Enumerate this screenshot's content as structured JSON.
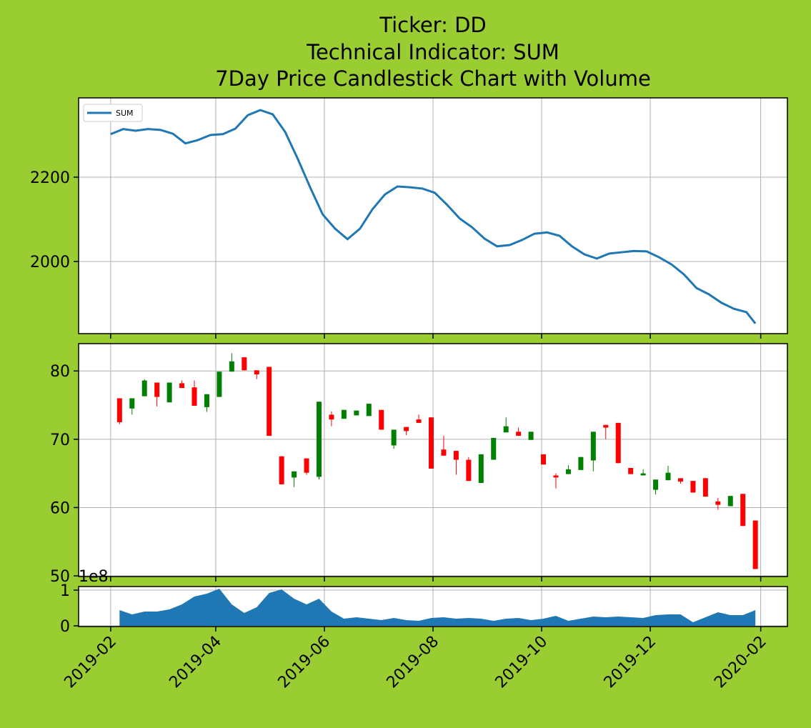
{
  "title": [
    "Ticker: DD",
    "Technical Indicator: SUM",
    "7Day Price Candlestick Chart with Volume"
  ],
  "chart_data": [
    {
      "type": "line",
      "legend": "upper left",
      "grid": true,
      "x": [
        17928,
        17935,
        17942,
        17949,
        17956,
        17963,
        17970,
        17977,
        17984,
        17991,
        17998,
        18005,
        18012,
        18019,
        18026,
        18033,
        18040,
        18047,
        18054,
        18061,
        18068,
        18075,
        18082,
        18089,
        18096,
        18103,
        18110,
        18117,
        18124,
        18131,
        18138,
        18145,
        18152,
        18159,
        18166,
        18173,
        18180,
        18187,
        18194,
        18201,
        18208,
        18215,
        18222,
        18229,
        18236,
        18243,
        18250,
        18257,
        18264,
        18271,
        18278,
        18285,
        18290
      ],
      "series": [
        {
          "name": "SUM",
          "color": "#1f77b4",
          "values": [
            2302,
            2314,
            2310,
            2314,
            2312,
            2303,
            2280,
            2288,
            2300,
            2302,
            2315,
            2347,
            2359,
            2349,
            2307,
            2244,
            2176,
            2112,
            2078,
            2053,
            2078,
            2124,
            2159,
            2178,
            2176,
            2173,
            2163,
            2134,
            2102,
            2081,
            2054,
            2036,
            2039,
            2051,
            2066,
            2069,
            2061,
            2036,
            2017,
            2007,
            2019,
            2022,
            2025,
            2024,
            2010,
            1993,
            1969,
            1937,
            1922,
            1902,
            1888,
            1880,
            1853
          ]
        }
      ],
      "ylim": [
        1829,
        2388
      ],
      "yticks": [
        2000,
        2200
      ]
    },
    {
      "type": "candlestick",
      "grid": true,
      "up_color": "green",
      "down_color": "red",
      "x": [
        17933,
        17940,
        17947,
        17954,
        17961,
        17968,
        17975,
        17982,
        17989,
        17996,
        18003,
        18010,
        18017,
        18024,
        18031,
        18038,
        18045,
        18052,
        18059,
        18066,
        18073,
        18080,
        18087,
        18094,
        18101,
        18108,
        18115,
        18122,
        18129,
        18136,
        18143,
        18150,
        18157,
        18164,
        18171,
        18178,
        18185,
        18192,
        18199,
        18206,
        18213,
        18220,
        18227,
        18234,
        18241,
        18248,
        18255,
        18262,
        18269,
        18276,
        18283,
        18290
      ],
      "open": [
        76.0,
        74.5,
        76.3,
        78.3,
        75.4,
        78.2,
        77.6,
        74.7,
        76.2,
        79.9,
        82.0,
        80.1,
        80.6,
        67.5,
        64.4,
        67.2,
        64.5,
        73.6,
        73.0,
        73.5,
        73.4,
        74.3,
        69.1,
        71.8,
        72.9,
        73.2,
        68.5,
        68.3,
        67.0,
        63.6,
        67.0,
        71.0,
        71.1,
        69.9,
        67.8,
        64.7,
        64.9,
        65.5,
        66.9,
        72.1,
        72.4,
        65.8,
        64.7,
        62.6,
        64.0,
        64.3,
        63.9,
        64.3,
        60.9,
        60.2,
        62.0,
        58.1
      ],
      "high": [
        76.0,
        76.0,
        78.8,
        78.3,
        78.3,
        78.6,
        78.6,
        76.6,
        79.9,
        82.6,
        82.0,
        80.1,
        80.6,
        67.5,
        65.3,
        67.2,
        75.5,
        74.1,
        74.3,
        74.2,
        75.2,
        74.3,
        71.4,
        71.8,
        73.6,
        73.2,
        70.5,
        68.3,
        67.4,
        67.8,
        70.2,
        73.2,
        71.7,
        71.1,
        67.8,
        65.0,
        66.2,
        67.4,
        71.1,
        72.1,
        72.4,
        65.8,
        65.6,
        64.1,
        66.1,
        64.3,
        63.9,
        64.3,
        61.4,
        61.7,
        62.0,
        58.1
      ],
      "low": [
        72.2,
        73.6,
        76.3,
        74.8,
        75.4,
        77.5,
        74.9,
        74.0,
        76.2,
        79.9,
        80.1,
        78.8,
        70.5,
        63.4,
        63.0,
        64.8,
        64.1,
        71.9,
        73.0,
        73.5,
        73.4,
        71.4,
        68.6,
        70.6,
        72.4,
        65.7,
        67.6,
        64.8,
        63.9,
        63.6,
        67.0,
        71.0,
        70.5,
        69.9,
        66.3,
        62.8,
        64.9,
        65.5,
        65.3,
        70.0,
        66.5,
        64.9,
        64.7,
        61.9,
        64.0,
        63.5,
        62.2,
        61.6,
        59.7,
        60.2,
        57.3,
        51.0
      ],
      "close": [
        72.5,
        76.0,
        78.6,
        76.2,
        78.3,
        77.5,
        74.9,
        76.6,
        79.9,
        81.4,
        80.1,
        79.5,
        70.5,
        63.4,
        65.3,
        65.1,
        75.5,
        72.9,
        74.3,
        74.2,
        75.2,
        71.4,
        71.4,
        71.2,
        72.4,
        65.7,
        67.6,
        67.0,
        63.9,
        67.8,
        70.2,
        71.9,
        70.5,
        71.1,
        66.3,
        64.4,
        65.6,
        67.4,
        71.1,
        71.7,
        66.5,
        64.9,
        65.0,
        64.1,
        65.1,
        63.8,
        62.2,
        61.6,
        60.4,
        61.7,
        57.3,
        51.0
      ],
      "ylim": [
        49.9,
        84
      ],
      "yticks": [
        50,
        60,
        70,
        80
      ]
    },
    {
      "type": "area",
      "color": "#1f77b4",
      "grid": true,
      "offset_label": "1e8",
      "x": [
        17933,
        17940,
        17947,
        17954,
        17961,
        17968,
        17975,
        17982,
        17989,
        17996,
        18003,
        18010,
        18017,
        18024,
        18031,
        18038,
        18045,
        18052,
        18059,
        18066,
        18073,
        18080,
        18087,
        18094,
        18101,
        18108,
        18115,
        18122,
        18129,
        18136,
        18143,
        18150,
        18157,
        18164,
        18171,
        18178,
        18185,
        18192,
        18199,
        18206,
        18213,
        18220,
        18227,
        18234,
        18241,
        18248,
        18255,
        18262,
        18269,
        18276,
        18283,
        18290
      ],
      "values": [
        0.44,
        0.32,
        0.4,
        0.4,
        0.46,
        0.6,
        0.82,
        0.9,
        1.04,
        0.6,
        0.36,
        0.52,
        0.92,
        1.02,
        0.76,
        0.6,
        0.76,
        0.4,
        0.2,
        0.24,
        0.2,
        0.16,
        0.22,
        0.16,
        0.14,
        0.22,
        0.24,
        0.2,
        0.22,
        0.2,
        0.14,
        0.2,
        0.22,
        0.16,
        0.2,
        0.28,
        0.14,
        0.2,
        0.26,
        0.24,
        0.26,
        0.24,
        0.22,
        0.3,
        0.32,
        0.32,
        0.1,
        0.24,
        0.38,
        0.3,
        0.3,
        0.44
      ],
      "ylim": [
        -0.02,
        1.1
      ],
      "yticks": [
        0,
        1
      ],
      "xlim": [
        17910,
        18308
      ],
      "xticks": [
        {
          "value": 17928,
          "label": "2019-02"
        },
        {
          "value": 17987,
          "label": "2019-04"
        },
        {
          "value": 18048,
          "label": "2019-06"
        },
        {
          "value": 18109,
          "label": "2019-08"
        },
        {
          "value": 18170,
          "label": "2019-10"
        },
        {
          "value": 18231,
          "label": "2019-12"
        },
        {
          "value": 18293,
          "label": "2020-02"
        }
      ]
    }
  ]
}
